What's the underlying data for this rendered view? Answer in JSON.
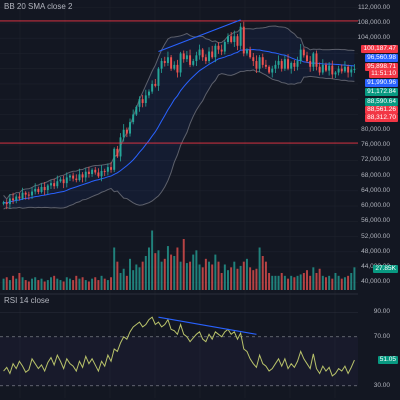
{
  "indicators": {
    "bb_label": "BB 20 SMA close 2",
    "rsi_label": "RSI 14 close"
  },
  "price_axis": {
    "ticks": [
      "112,000.00",
      "108,000.00",
      "104,000.00",
      "80,000.00",
      "76,000.00",
      "72,000.00",
      "68,000.00",
      "64,000.00",
      "60,000.00",
      "56,000.00",
      "52,000.00",
      "48,000.00",
      "44,000.00",
      "40,000.00"
    ]
  },
  "rsi_axis": {
    "ticks": [
      "90.00",
      "70.00",
      "30.00"
    ]
  },
  "price_tags": [
    {
      "text": "100,187.47",
      "color": "#f23645"
    },
    {
      "text": "96,560.98",
      "color": "#2962ff"
    },
    {
      "text": "95,898.71",
      "color": "#f23645"
    },
    {
      "text": "11:51:10",
      "color": "#f23645"
    },
    {
      "text": "91,990.96",
      "color": "#2962ff"
    },
    {
      "text": "91,172.84",
      "color": "#089981"
    },
    {
      "text": "88,590.64",
      "color": "#089981"
    },
    {
      "text": "88,561.26",
      "color": "#f23645"
    },
    {
      "text": "88,312.70",
      "color": "#f23645"
    }
  ],
  "volume_tag": {
    "text": "27.85K",
    "color": "#089981"
  },
  "rsi_tag": {
    "text": "51.05",
    "color": "#089981"
  },
  "colors": {
    "up": "#26a69a",
    "down": "#ef5350",
    "bb_band": "#5d606b",
    "bb_basis": "#2962ff",
    "rsi_line": "#b8c26a",
    "trend_line": "#2962ff",
    "hline": "#f23645"
  },
  "chart_data": [
    {
      "type": "candlestick",
      "title": "BB 20 SMA close 2",
      "ylim": [
        38000,
        114000
      ],
      "horizontal_lines": [
        108500,
        76500
      ],
      "closes": [
        61000,
        60500,
        62000,
        61500,
        62500,
        62000,
        63500,
        63000,
        62800,
        63800,
        64500,
        63700,
        65000,
        64200,
        65400,
        66000,
        65200,
        66500,
        67000,
        66000,
        67500,
        68000,
        67200,
        66800,
        68300,
        67500,
        69000,
        68400,
        69500,
        68800,
        67800,
        69200,
        69000,
        70200,
        69500,
        75000,
        73000,
        78000,
        80000,
        79000,
        82000,
        84000,
        86000,
        88000,
        87000,
        89000,
        90000,
        92000,
        91500,
        96000,
        98000,
        97500,
        99000,
        96000,
        97000,
        95000,
        100000,
        98500,
        99500,
        97000,
        98000,
        99500,
        101000,
        99000,
        98000,
        100500,
        99000,
        102000,
        101000,
        100500,
        103000,
        104500,
        103000,
        104500,
        102000,
        107000,
        100000,
        101000,
        99000,
        98000,
        96000,
        99000,
        97000,
        96500,
        95000,
        96000,
        97000,
        98000,
        96000,
        98500,
        96000,
        97500,
        96500,
        98000,
        101000,
        99500,
        98000,
        96500,
        100000,
        96500,
        95000,
        97000,
        95500,
        96800,
        94500,
        95000,
        96000,
        95300,
        96500,
        95000,
        95800,
        95900
      ],
      "volume_ylim": [
        0,
        60000
      ],
      "volume": [
        8000,
        9000,
        7000,
        10000,
        8000,
        12000,
        9000,
        7000,
        6000,
        8000,
        9000,
        7000,
        8000,
        6000,
        7000,
        9000,
        10000,
        8000,
        7000,
        6000,
        9000,
        8000,
        7000,
        10000,
        8000,
        9000,
        7000,
        6000,
        8000,
        9000,
        7000,
        10000,
        8000,
        7000,
        9000,
        30000,
        20000,
        12000,
        15000,
        10000,
        22000,
        14000,
        18000,
        16000,
        20000,
        24000,
        30000,
        42000,
        26000,
        28000,
        20000,
        22000,
        31000,
        25000,
        24000,
        30000,
        20000,
        36000,
        19000,
        20000,
        25000,
        28000,
        18000,
        16000,
        22000,
        20000,
        18000,
        25000,
        20000,
        12000,
        18000,
        14000,
        16000,
        20000,
        15000,
        17000,
        20000,
        22000,
        16000,
        14000,
        15000,
        30000,
        24000,
        20000,
        12000,
        10000,
        10000,
        10000,
        12000,
        10000,
        8000,
        10000,
        9000,
        10000,
        11000,
        12000,
        14000,
        10000,
        16000,
        12000,
        15000,
        10000,
        9000,
        10000,
        8000,
        12000,
        10000,
        8000,
        9000,
        10000,
        12000,
        16000
      ],
      "rsi_ylim": [
        20,
        100
      ],
      "rsi_levels": [
        70,
        30
      ],
      "rsi": [
        42,
        45,
        40,
        48,
        44,
        50,
        46,
        41,
        43,
        52,
        48,
        44,
        47,
        42,
        49,
        53,
        47,
        55,
        50,
        44,
        52,
        48,
        46,
        42,
        50,
        45,
        54,
        48,
        52,
        47,
        42,
        50,
        46,
        55,
        50,
        60,
        58,
        65,
        70,
        68,
        74,
        78,
        80,
        82,
        78,
        80,
        84,
        86,
        80,
        82,
        78,
        80,
        84,
        76,
        75,
        72,
        80,
        72,
        70,
        66,
        69,
        72,
        74,
        68,
        66,
        72,
        68,
        74,
        72,
        70,
        74,
        76,
        72,
        74,
        68,
        73,
        60,
        58,
        52,
        48,
        45,
        55,
        48,
        46,
        42,
        44,
        48,
        52,
        46,
        52,
        44,
        48,
        45,
        50,
        58,
        52,
        48,
        44,
        56,
        44,
        40,
        46,
        42,
        45,
        38,
        40,
        44,
        42,
        46,
        40,
        45,
        51
      ]
    }
  ]
}
